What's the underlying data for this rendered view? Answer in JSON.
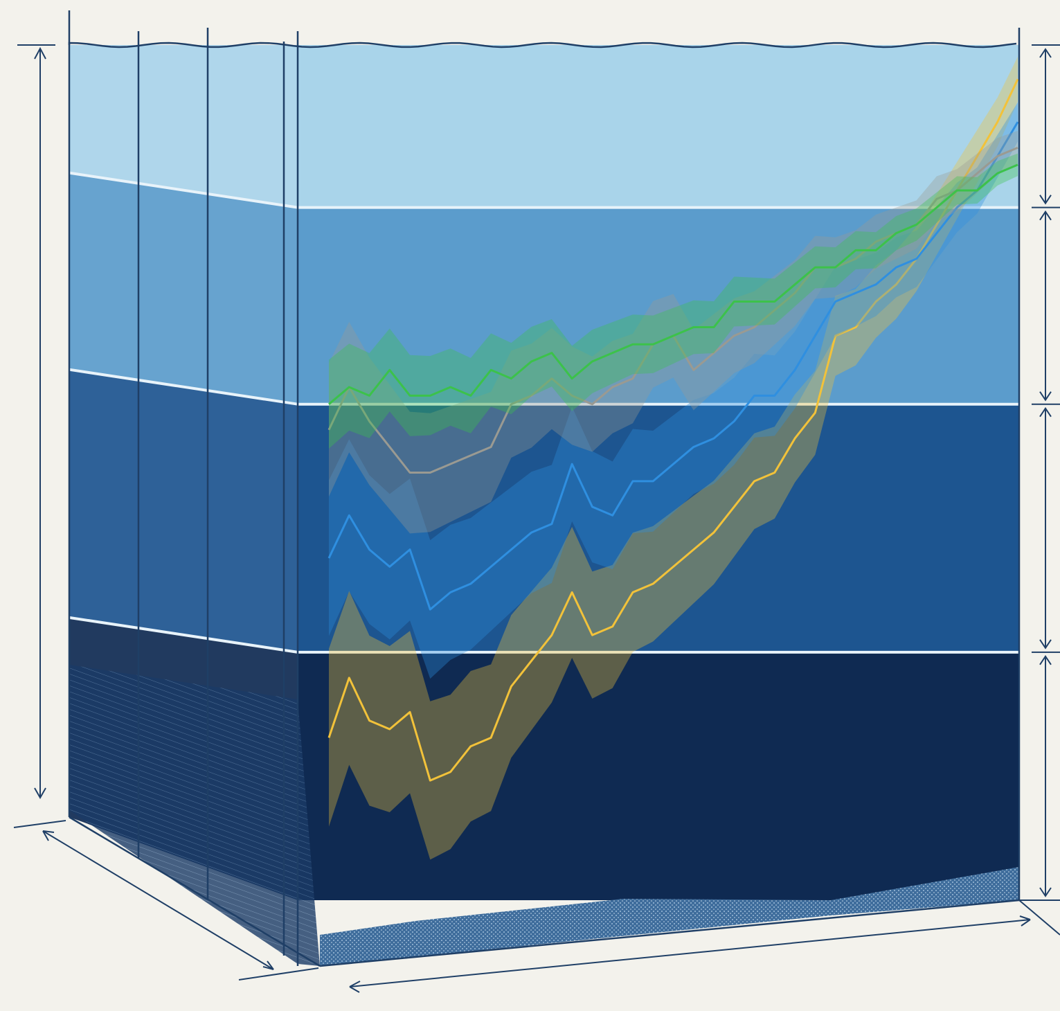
{
  "chart_data": {
    "type": "line",
    "ylim": [
      0,
      100
    ],
    "yticks": [
      0,
      29,
      58,
      81,
      100
    ],
    "layer_colors": [
      "#0f2a52",
      "#1d5590",
      "#5b9ccc",
      "#a9d4ea"
    ],
    "series": [
      {
        "color": "#f2c23a",
        "spread": 8,
        "values": [
          19,
          26,
          21,
          20,
          22,
          14,
          15,
          18,
          19,
          25,
          28,
          31,
          36,
          31,
          32,
          36,
          37,
          39,
          41,
          43,
          46,
          49,
          50,
          54,
          57,
          66,
          67,
          70,
          72,
          75,
          79,
          83,
          87,
          91,
          96
        ]
      },
      {
        "color": "#2f8fe0",
        "spread": 7,
        "values": [
          40,
          45,
          41,
          39,
          41,
          34,
          36,
          37,
          39,
          41,
          43,
          44,
          51,
          46,
          45,
          49,
          49,
          51,
          53,
          54,
          56,
          59,
          59,
          62,
          66,
          70,
          71,
          72,
          74,
          75,
          78,
          81,
          83,
          87,
          91
        ]
      },
      {
        "color": "#9a9a92",
        "spread": 6,
        "values": [
          55,
          60,
          56,
          53,
          50,
          50,
          51,
          52,
          53,
          58,
          59,
          61,
          59,
          58,
          60,
          61,
          65,
          66,
          62,
          64,
          66,
          67,
          69,
          71,
          74,
          74,
          75,
          77,
          78,
          79,
          82,
          83,
          85,
          87,
          88
        ]
      },
      {
        "color": "#3cc24a",
        "spread": 4,
        "values": [
          58,
          60,
          59,
          62,
          59,
          59,
          60,
          59,
          62,
          61,
          63,
          64,
          61,
          63,
          64,
          65,
          65,
          66,
          67,
          67,
          70,
          70,
          70,
          72,
          74,
          74,
          76,
          76,
          78,
          79,
          81,
          83,
          83,
          85,
          86
        ]
      }
    ]
  }
}
